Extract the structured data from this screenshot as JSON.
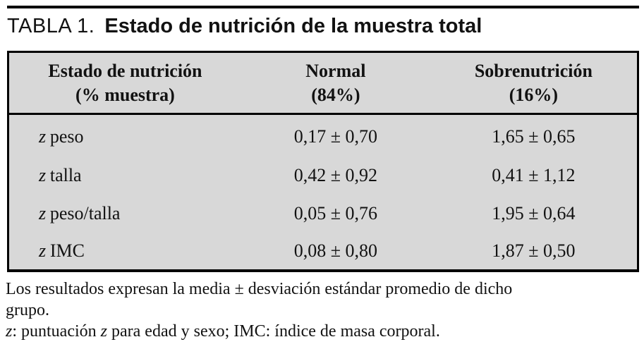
{
  "title": {
    "label": "TABLA 1.",
    "text": "Estado de nutrición de la muestra total"
  },
  "table": {
    "columns": [
      {
        "header": "Estado de nutrición",
        "subheader": "(% muestra)"
      },
      {
        "header": "Normal",
        "subheader": "(84%)"
      },
      {
        "header": "Sobrenutrición",
        "subheader": "(16%)"
      }
    ],
    "rows": [
      {
        "symbol": "z",
        "name": "peso",
        "normal": "0,17 ± 0,70",
        "sobrenutricion": "1,65 ± 0,65"
      },
      {
        "symbol": "z",
        "name": "talla",
        "normal": "0,42 ± 0,92",
        "sobrenutricion": "0,41 ± 1,12"
      },
      {
        "symbol": "z",
        "name": "peso/talla",
        "normal": "0,05 ± 0,76",
        "sobrenutricion": "1,95 ± 0,64"
      },
      {
        "symbol": "z",
        "name": "IMC",
        "normal": "0,08 ± 0,80",
        "sobrenutricion": "1,87 ± 0,50"
      }
    ]
  },
  "footnotes": {
    "note1_line1": "Los resultados expresan la media ± desviación estándar promedio de dicho",
    "note1_line2": "grupo.",
    "note2": {
      "z1": "z",
      "mid": ": puntuación ",
      "z2": "z",
      "rest": " para edad y sexo; IMC: índice de masa corporal."
    }
  },
  "colors": {
    "table_background": "#d8d8d8",
    "rule": "#000000",
    "text": "#121212"
  }
}
